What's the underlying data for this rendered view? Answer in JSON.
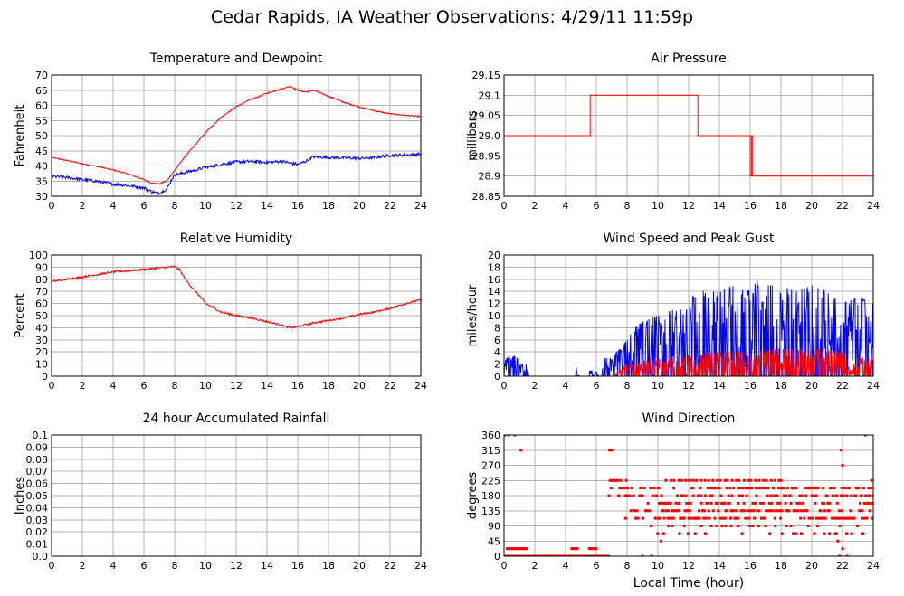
{
  "page": {
    "title": "Cedar Rapids, IA Weather Observations: 4/29/11 11:59p"
  },
  "colors": {
    "red": "#ff0000",
    "blue": "#0000ff",
    "grid": "#b4b4b4"
  },
  "chart_data": [
    {
      "id": "temp",
      "type": "line",
      "title": "Temperature and Dewpoint",
      "ylabel": "Fahrenheit",
      "xlabel": "",
      "xlim": [
        0,
        24
      ],
      "ylim": [
        30,
        70
      ],
      "xticks": [
        "0",
        "2",
        "4",
        "6",
        "8",
        "10",
        "12",
        "14",
        "16",
        "18",
        "20",
        "22",
        "24"
      ],
      "yticks": [
        "30",
        "35",
        "40",
        "45",
        "50",
        "55",
        "60",
        "65",
        "70"
      ],
      "grid": true,
      "series": [
        {
          "color": "#ff0000",
          "noise": 0.2,
          "x": [
            0,
            1,
            2,
            3,
            4,
            5,
            6,
            6.5,
            7,
            7.5,
            8,
            8.5,
            9,
            9.5,
            10,
            11,
            12,
            12.5,
            13,
            14,
            15,
            15.5,
            16,
            16.5,
            17,
            18,
            19,
            20,
            21,
            22,
            23,
            24
          ],
          "y": [
            42.8,
            41.8,
            40.7,
            39.8,
            38.7,
            37.3,
            35.5,
            34.4,
            34.0,
            35.2,
            38.5,
            42,
            45,
            48,
            51,
            56,
            59.5,
            61,
            62,
            64,
            65.5,
            66.3,
            65.0,
            64.4,
            65,
            63,
            61,
            59.5,
            58.2,
            57.2,
            56.7,
            56.3
          ]
        },
        {
          "color": "#0000ff",
          "noise": 0.5,
          "x": [
            0,
            1,
            2,
            3,
            4,
            5,
            6,
            6.5,
            7,
            7.5,
            7.8,
            8,
            9,
            10,
            11,
            12,
            13,
            14,
            15,
            16,
            16.5,
            17,
            18,
            19,
            20,
            21,
            22,
            23,
            24
          ],
          "y": [
            36.5,
            36.2,
            35.5,
            34.9,
            34.0,
            33.5,
            32.8,
            31.5,
            31.0,
            32.5,
            35.5,
            37,
            38.2,
            39.5,
            40.5,
            41.3,
            41.5,
            41.2,
            41.5,
            40.5,
            41.5,
            43,
            42.8,
            42.7,
            42.5,
            42.8,
            43.5,
            43.6,
            43.9
          ]
        }
      ]
    },
    {
      "id": "pressure",
      "type": "line",
      "title": "Air Pressure",
      "ylabel": "millibars",
      "xlabel": "",
      "xlim": [
        0,
        24
      ],
      "ylim": [
        28.85,
        29.15
      ],
      "xticks": [
        "0",
        "2",
        "4",
        "6",
        "8",
        "10",
        "12",
        "14",
        "16",
        "18",
        "20",
        "22",
        "24"
      ],
      "yticks": [
        "28.85",
        "28.9",
        "28.95",
        "29.0",
        "29.05",
        "29.1",
        "29.15"
      ],
      "grid": true,
      "series": [
        {
          "color": "#ff0000",
          "noise": 0,
          "x": [
            0,
            5.6,
            5.6,
            12.6,
            12.6,
            16.0,
            16.0,
            16.08,
            16.08,
            16.16,
            16.16,
            16.24,
            16.24,
            24
          ],
          "y": [
            29.0,
            29.0,
            29.1,
            29.1,
            29.0,
            29.0,
            28.9,
            28.9,
            29.0,
            29.0,
            28.9,
            28.9,
            28.9,
            28.9
          ]
        }
      ]
    },
    {
      "id": "humidity",
      "type": "line",
      "title": "Relative Humidity",
      "ylabel": "Percent",
      "xlabel": "",
      "xlim": [
        0,
        24
      ],
      "ylim": [
        0,
        100
      ],
      "xticks": [
        "0",
        "2",
        "4",
        "6",
        "8",
        "10",
        "12",
        "14",
        "16",
        "18",
        "20",
        "22",
        "24"
      ],
      "yticks": [
        "0",
        "10",
        "20",
        "30",
        "40",
        "50",
        "60",
        "70",
        "80",
        "90",
        "100"
      ],
      "grid": true,
      "series": [
        {
          "color": "#ff0000",
          "noise": 0.8,
          "x": [
            0,
            1,
            2,
            3,
            4,
            5,
            6,
            7,
            7.5,
            8,
            8.3,
            8.6,
            9,
            9.5,
            10,
            11,
            12,
            13,
            14,
            15,
            15.5,
            16,
            17,
            18,
            19,
            20,
            21,
            22,
            23,
            24
          ],
          "y": [
            78,
            80,
            82,
            84,
            86,
            87,
            88,
            89.5,
            90,
            90.5,
            88,
            82,
            75,
            68,
            60,
            53,
            50,
            48,
            45,
            42,
            40,
            41,
            44,
            46,
            48,
            51,
            53,
            56,
            60,
            63
          ]
        }
      ]
    },
    {
      "id": "wind",
      "type": "line",
      "title": "Wind Speed and Peak Gust",
      "ylabel": "miles/hour",
      "xlabel": "",
      "xlim": [
        0,
        24
      ],
      "ylim": [
        0,
        20
      ],
      "xticks": [
        "0",
        "2",
        "4",
        "6",
        "8",
        "10",
        "12",
        "14",
        "16",
        "18",
        "20",
        "22",
        "24"
      ],
      "yticks": [
        "0",
        "2",
        "4",
        "6",
        "8",
        "10",
        "12",
        "14",
        "16",
        "18",
        "20"
      ],
      "grid": true,
      "series": [
        {
          "name": "",
          "color": "#0000ff",
          "style": "gust",
          "envelope_x": [
            0,
            0.3,
            1.5,
            1.6,
            4.6,
            4.7,
            4.9,
            5.5,
            5.6,
            5.8,
            6.0,
            6.2,
            6.5,
            7,
            8,
            8.5,
            9,
            10,
            11,
            12,
            12.5,
            13,
            14,
            15,
            16,
            16.5,
            17,
            18,
            19,
            20,
            21,
            22,
            23,
            24
          ],
          "envelope_y": [
            2,
            4,
            2,
            0,
            0,
            2,
            0,
            0,
            2,
            0,
            1,
            0,
            3,
            3,
            6,
            8,
            9,
            10,
            11,
            11,
            15,
            14,
            14,
            15,
            14,
            16,
            15,
            15,
            14,
            15,
            14,
            12,
            13,
            12
          ]
        },
        {
          "name": "",
          "color": "#ff0000",
          "style": "speed",
          "envelope_x": [
            0,
            7,
            8,
            10,
            12,
            14,
            16,
            18,
            20,
            22,
            22.5,
            23,
            24
          ],
          "envelope_y": [
            0,
            0,
            2,
            3,
            3.5,
            4,
            4,
            4.5,
            4.5,
            4,
            1,
            3,
            3
          ]
        }
      ]
    },
    {
      "id": "rain",
      "type": "line",
      "title": "24 hour Accumulated Rainfall",
      "ylabel": "Inches",
      "xlabel": "",
      "xlim": [
        0,
        24
      ],
      "ylim": [
        0,
        0.1
      ],
      "xticks": [
        "0",
        "2",
        "4",
        "6",
        "8",
        "10",
        "12",
        "14",
        "16",
        "18",
        "20",
        "22",
        "24"
      ],
      "yticks": [
        "0.0",
        "0.01",
        "0.02",
        "0.03",
        "0.04",
        "0.05",
        "0.06",
        "0.07",
        "0.08",
        "0.09",
        "0.1"
      ],
      "grid": true,
      "series": [
        {
          "color": "#ff0000",
          "noise": 0,
          "x": [
            0,
            24
          ],
          "y": [
            0,
            0
          ]
        }
      ]
    },
    {
      "id": "winddir",
      "type": "scatter",
      "title": "Wind Direction",
      "ylabel": "degrees",
      "xlabel": "Local Time (hour)",
      "xlim": [
        0,
        24
      ],
      "ylim": [
        0,
        360
      ],
      "xticks": [
        "0",
        "2",
        "4",
        "6",
        "8",
        "10",
        "12",
        "14",
        "16",
        "18",
        "20",
        "22",
        "24"
      ],
      "yticks": [
        "0",
        "45",
        "90",
        "135",
        "180",
        "225",
        "270",
        "315",
        "360"
      ],
      "grid": true,
      "series": [
        {
          "color": "#ff0000",
          "clusters": [
            {
              "x0": 0,
              "x1": 6.8,
              "values": [
                0
              ],
              "step": 0.03
            },
            {
              "x0": 0.2,
              "x1": 1.5,
              "values": [
                22.5
              ],
              "step": 0.06
            },
            {
              "x0": 4.4,
              "x1": 4.8,
              "values": [
                22.5
              ],
              "step": 0.06
            },
            {
              "x0": 5.5,
              "x1": 6.0,
              "values": [
                22.5
              ],
              "step": 0.08
            },
            {
              "x0": 6.8,
              "x1": 8.0,
              "values": [
                180,
                202.5,
                225
              ],
              "step": 0.07
            },
            {
              "x0": 7.9,
              "x1": 10.0,
              "values": [
                112.5,
                135,
                157.5,
                180,
                202.5
              ],
              "step": 0.08
            },
            {
              "x0": 10.0,
              "x1": 24.0,
              "values": [
                112.5,
                135,
                157.5,
                180,
                202.5
              ],
              "step": 0.045
            },
            {
              "x0": 10.5,
              "x1": 18.0,
              "values": [
                225
              ],
              "step": 0.25
            },
            {
              "x0": 9.5,
              "x1": 23.5,
              "values": [
                67.5,
                90
              ],
              "step": 0.35
            }
          ],
          "points": [
            [
              0.05,
              360
            ],
            [
              0.3,
              360
            ],
            [
              0.7,
              360
            ],
            [
              1.1,
              315
            ],
            [
              6.85,
              315
            ],
            [
              7.0,
              315
            ],
            [
              9.0,
              0
            ],
            [
              9.6,
              0
            ],
            [
              10.2,
              45
            ],
            [
              21.8,
              0
            ],
            [
              22.0,
              22.5
            ],
            [
              21.9,
              315
            ],
            [
              22.0,
              270
            ],
            [
              22.3,
              0
            ],
            [
              23.5,
              360
            ],
            [
              21.6,
              67.5
            ],
            [
              21.7,
              45
            ],
            [
              18.8,
              67.5
            ],
            [
              23.9,
              225
            ],
            [
              23.7,
              202.5
            ]
          ]
        }
      ]
    }
  ]
}
